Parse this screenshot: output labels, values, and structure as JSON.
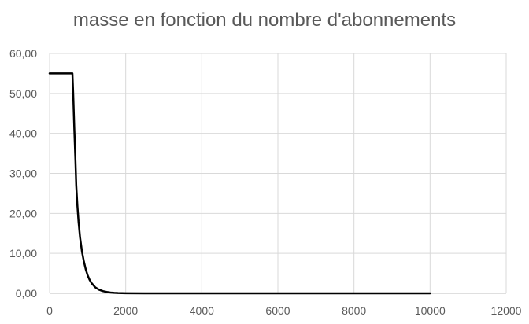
{
  "chart_data": {
    "type": "line",
    "title": "masse en fonction du nombre d'abonnements",
    "xlabel": "",
    "ylabel": "",
    "xlim": [
      0,
      12000
    ],
    "ylim": [
      0,
      60
    ],
    "x_ticks": [
      0,
      2000,
      4000,
      6000,
      8000,
      10000,
      12000
    ],
    "x_tick_labels": [
      "0",
      "2000",
      "4000",
      "6000",
      "8000",
      "10000",
      "12000"
    ],
    "y_ticks": [
      0,
      10,
      20,
      30,
      40,
      50,
      60
    ],
    "y_tick_labels": [
      "0,00",
      "10,00",
      "20,00",
      "30,00",
      "40,00",
      "50,00",
      "60,00"
    ],
    "grid": true,
    "legend": "none",
    "line_color": "#000000",
    "grid_color": "#d9d9d9",
    "series": [
      {
        "x": [
          0,
          200,
          400,
          600,
          620,
          650,
          680,
          700,
          730,
          760,
          800,
          850,
          900,
          950,
          1000,
          1050,
          1100,
          1200,
          1300,
          1400,
          1500,
          1600,
          1700,
          1800,
          2000,
          2500,
          3000,
          3600,
          4000,
          5000,
          6000,
          7000,
          8000,
          9000,
          10000
        ],
        "y": [
          55,
          55,
          55,
          55,
          50,
          41,
          33,
          27,
          22,
          18,
          14,
          10.5,
          8,
          6,
          4.5,
          3.4,
          2.6,
          1.5,
          0.9,
          0.55,
          0.35,
          0.2,
          0.12,
          0.07,
          0.03,
          0.01,
          0,
          0,
          0,
          0,
          0,
          0,
          0,
          0,
          0
        ]
      }
    ]
  }
}
